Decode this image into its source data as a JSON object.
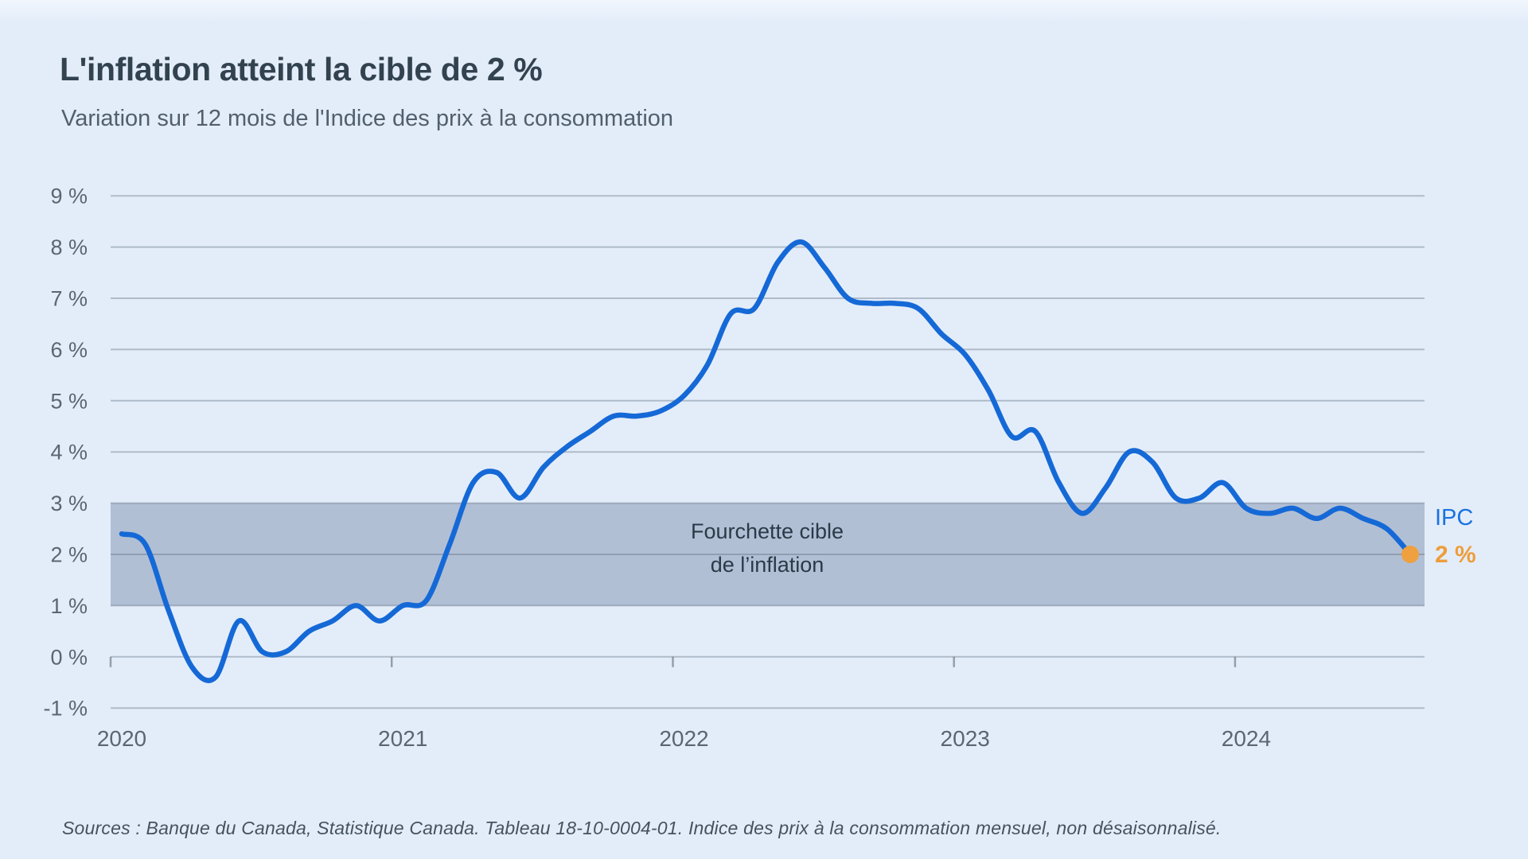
{
  "header": {
    "title": "L'inflation atteint la cible de 2 %",
    "subtitle": "Variation sur 12 mois de l'Indice des prix à la consommation"
  },
  "footer": {
    "source": "Sources : Banque du Canada, Statistique Canada. Tableau 18-10-0004-01. Indice des prix à la consommation mensuel, non désaisonnalisé."
  },
  "chart_data": {
    "type": "line",
    "title": "L'inflation atteint la cible de 2 %",
    "subtitle": "Variation sur 12 mois de l'Indice des prix à la consommation",
    "xlabel": "",
    "ylabel": "",
    "unit": "%",
    "ylim": [
      -1,
      9
    ],
    "grid": "horizontal",
    "frequency": "monthly",
    "x_start": "2020-01",
    "x_end": "2024-08",
    "x_tick_labels": [
      "2020",
      "2021",
      "2022",
      "2023",
      "2024"
    ],
    "y_ticks": [
      9,
      8,
      7,
      6,
      5,
      4,
      3,
      2,
      1,
      0,
      -1
    ],
    "y_tick_labels": [
      "9 %",
      "8 %",
      "7 %",
      "6 %",
      "5 %",
      "4 %",
      "3 %",
      "2 %",
      "1 %",
      "0 %",
      "-1 %"
    ],
    "series": [
      {
        "name": "IPC",
        "values": [
          2.4,
          2.2,
          0.9,
          -0.2,
          -0.4,
          0.7,
          0.1,
          0.1,
          0.5,
          0.7,
          1.0,
          0.7,
          1.0,
          1.1,
          2.2,
          3.4,
          3.6,
          3.1,
          3.7,
          4.1,
          4.4,
          4.7,
          4.7,
          4.8,
          5.1,
          5.7,
          6.7,
          6.8,
          7.7,
          8.1,
          7.6,
          7.0,
          6.9,
          6.9,
          6.8,
          6.3,
          5.9,
          5.2,
          4.3,
          4.4,
          3.4,
          2.8,
          3.3,
          4.0,
          3.8,
          3.1,
          3.1,
          3.4,
          2.9,
          2.8,
          2.9,
          2.7,
          2.9,
          2.7,
          2.5,
          2.0
        ]
      }
    ],
    "band": {
      "from_percent": 1,
      "to_percent": 3,
      "label_line1": "Fourchette cible",
      "label_line2": "de l’inflation"
    },
    "end_labels": {
      "series": "IPC",
      "value": "2 %"
    },
    "colors": {
      "line": "#1569d6",
      "dot": "#efa03f",
      "band": "#b1bfd5",
      "series_label": "#1a72e0",
      "value_label": "#ee9d3a",
      "grid": "rgba(95,106,122,0.38)",
      "axis_text": "#5b6573",
      "background": "#e3edfa"
    }
  }
}
